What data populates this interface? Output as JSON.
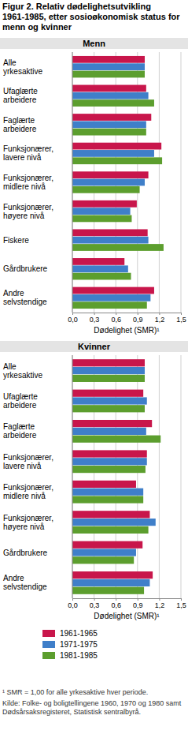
{
  "title": "Figur 2. Relativ dødelighetsutvikling 1961-1985, etter sosioøkonomisk status for menn og kvinner",
  "notes": [
    "¹ SMR = 1,00 for alle yrkesaktive hver periode.",
    "Kilde: Folke- og boligtellingene 1960, 1970 og 1980 samt Dødsårsaksregisteret, Statistisk sentralbyrå."
  ],
  "chart_data": [
    {
      "type": "bar",
      "title": "Menn",
      "orientation": "horizontal",
      "grid": true,
      "x_label": "Dødelighet (SMR)¹",
      "categories": [
        "Alle yrkesaktive",
        "Ufaglærte arbeidere",
        "Faglærte arbeidere",
        "Funksjonærer, lavere nivå",
        "Funksjonærer, midlere nivå",
        "Funksjonærer, høyere nivå",
        "Fiskere",
        "Gårdbrukere",
        "Andre selvstendige"
      ],
      "series": [
        {
          "name": "1961-1965",
          "color": "#c8164b",
          "values": [
            1.0,
            1.02,
            1.09,
            1.23,
            1.05,
            0.89,
            1.04,
            0.72,
            1.13
          ]
        },
        {
          "name": "1971-1975",
          "color": "#3f7fc9",
          "values": [
            1.0,
            1.05,
            1.02,
            1.13,
            1.0,
            0.8,
            1.05,
            0.77,
            1.08
          ]
        },
        {
          "name": "1981-1985",
          "color": "#5c9e2e",
          "values": [
            1.0,
            1.13,
            1.02,
            1.24,
            0.93,
            0.82,
            1.26,
            0.81,
            1.03
          ]
        }
      ],
      "xlim": [
        0,
        1.5
      ],
      "xticks": [
        {
          "value": 0,
          "label": "0,0"
        },
        {
          "value": 0.3,
          "label": "0,3"
        },
        {
          "value": 0.6,
          "label": "0,6"
        },
        {
          "value": 0.9,
          "label": "0,9"
        },
        {
          "value": 1.2,
          "label": "1,2"
        },
        {
          "value": 1.5,
          "label": "1,5"
        }
      ]
    },
    {
      "type": "bar",
      "title": "Kvinner",
      "orientation": "horizontal",
      "grid": true,
      "legend": "bottom",
      "x_label": "Dødelighet (SMR)¹",
      "categories": [
        "Alle yrkesaktive",
        "Ufaglærte arbeidere",
        "Faglærte arbeidere",
        "Funksjonærer, lavere nivå",
        "Funksjonærer, midlere nivå",
        "Funksjonærer, høyere nivå",
        "Gårdbrukere",
        "Andre selvstendige"
      ],
      "series": [
        {
          "name": "1961-1965",
          "color": "#c8164b",
          "values": [
            1.0,
            0.98,
            1.1,
            1.03,
            0.88,
            1.07,
            0.97,
            1.11
          ]
        },
        {
          "name": "1971-1975",
          "color": "#3f7fc9",
          "values": [
            1.0,
            1.03,
            1.02,
            1.03,
            0.98,
            1.15,
            0.88,
            1.07
          ]
        },
        {
          "name": "1981-1985",
          "color": "#5c9e2e",
          "values": [
            1.0,
            1.0,
            1.22,
            1.01,
            0.98,
            1.05,
            0.85,
            0.99
          ]
        }
      ],
      "xlim": [
        0,
        1.5
      ],
      "xticks": [
        {
          "value": 0,
          "label": "0,0"
        },
        {
          "value": 0.3,
          "label": "0,3"
        },
        {
          "value": 0.6,
          "label": "0,6"
        },
        {
          "value": 0.9,
          "label": "0,9"
        },
        {
          "value": 1.2,
          "label": "1,2"
        },
        {
          "value": 1.5,
          "label": "1,5"
        }
      ]
    }
  ]
}
